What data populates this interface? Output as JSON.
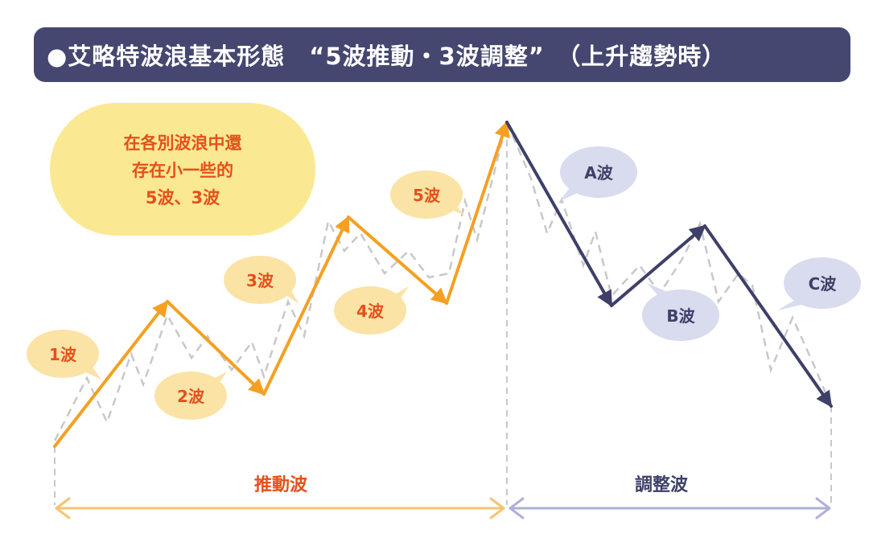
{
  "title": "●艾略特波浪基本形態　“5波推動・3波調整”　（上升趨勢時）",
  "note": {
    "lines": [
      "在各別波浪中還",
      "存在小一些的",
      "5波、3波"
    ]
  },
  "waves": {
    "w1": "1波",
    "w2": "2波",
    "w3": "3波",
    "w4": "4波",
    "w5": "5波",
    "wa": "A波",
    "wb": "B波",
    "wc": "C波"
  },
  "sections": {
    "impulse": "推動波",
    "corrective": "調整波"
  },
  "colors": {
    "title_bg": "#454770",
    "impulse": "#F5A022",
    "corrective": "#3E4068",
    "impulse_bubble": "#FBE3A6",
    "corrective_bubble": "#D9DBEE",
    "note_bg": "#FBE893",
    "note_text": "#E5501B",
    "impulse_label": "#E5501B",
    "corrective_label": "#3E4068",
    "dashed": "#C8C8C8"
  }
}
